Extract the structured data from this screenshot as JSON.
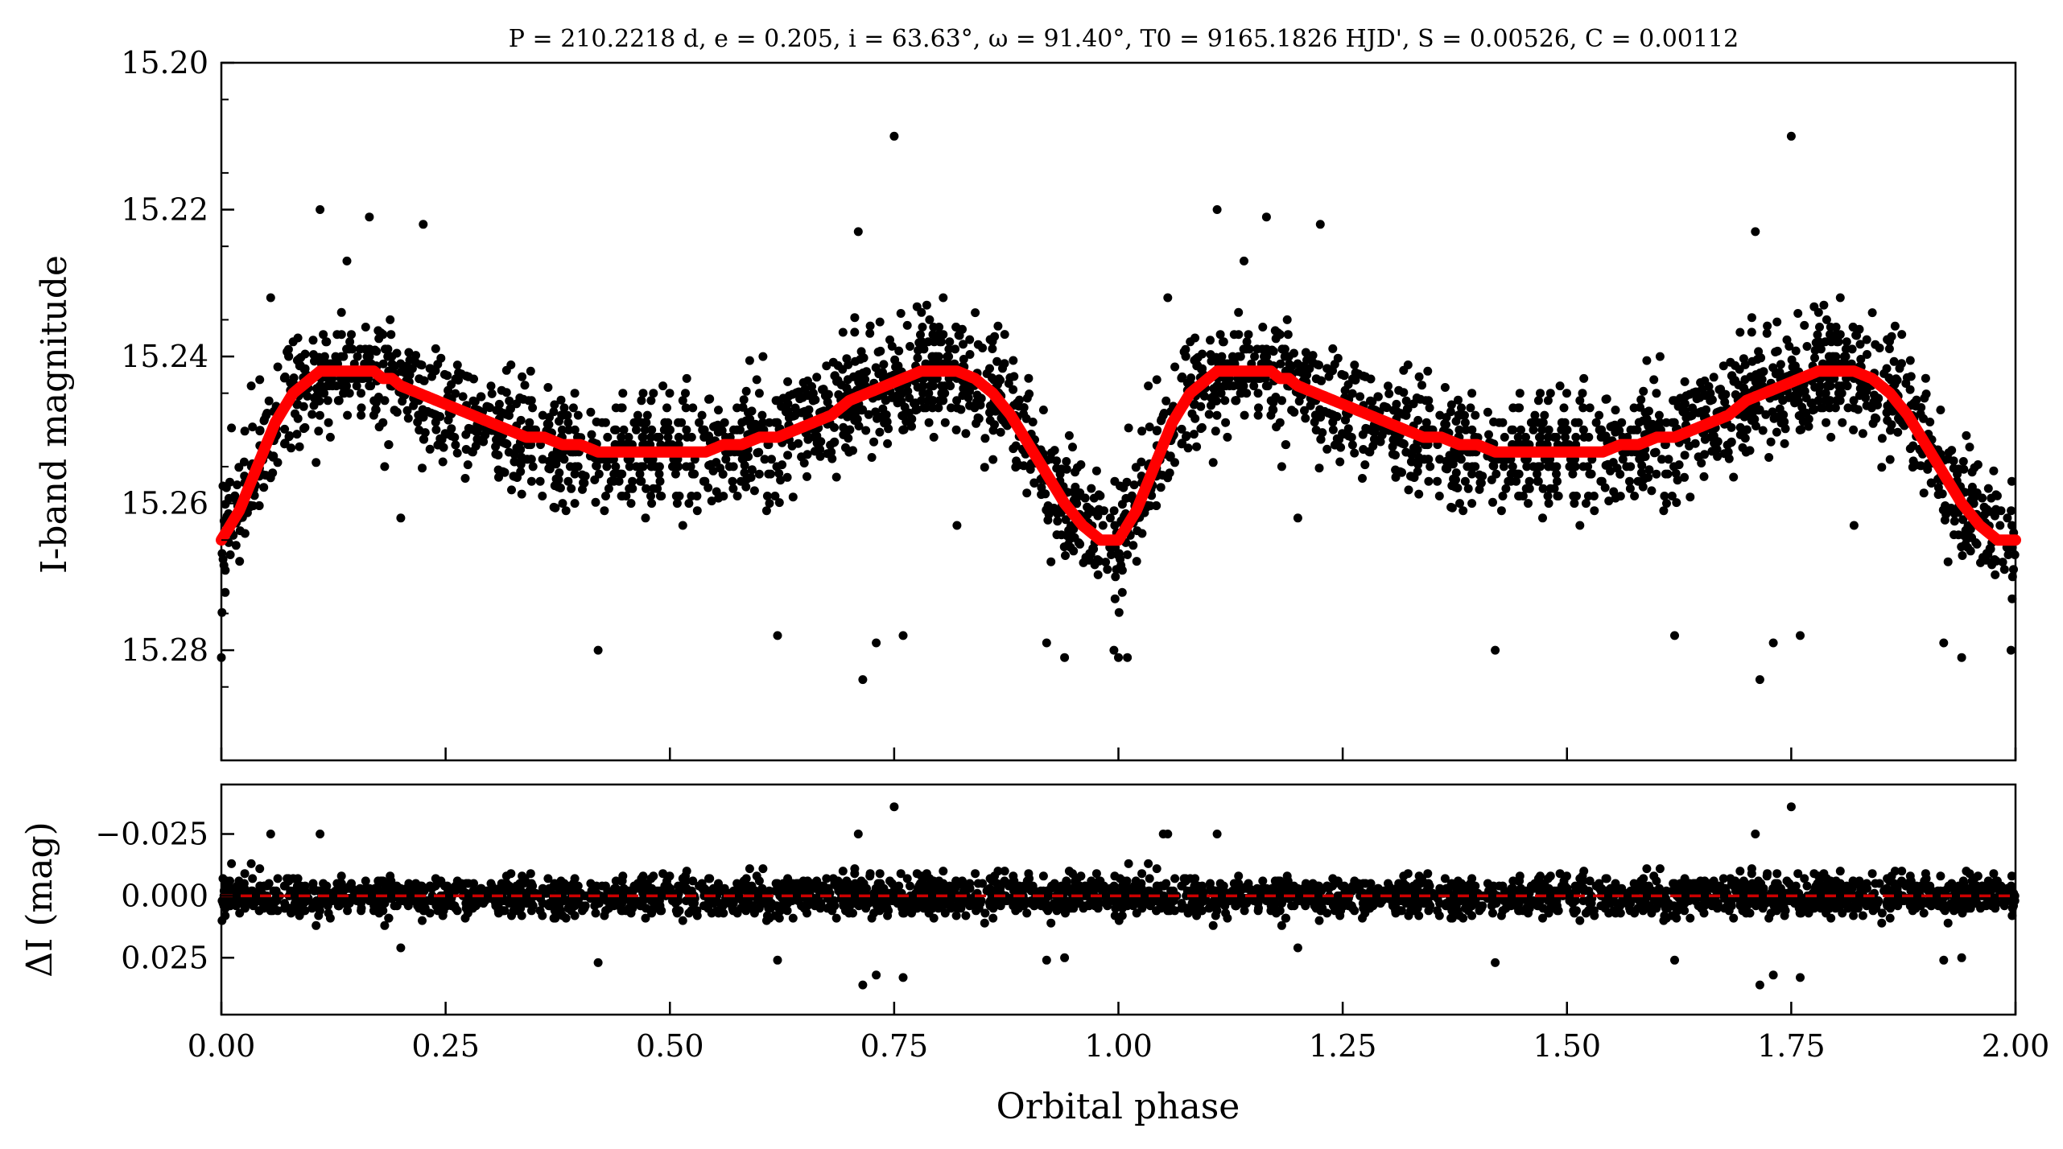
{
  "chart_data": [
    {
      "type": "scatter",
      "title": "P = 210.2218 d, e = 0.205, i = 63.63°, ω = 91.40°, T0 = 9165.1826 HJD', S = 0.00526, C = 0.00112",
      "xlabel": "Orbital phase",
      "ylabel": "I-band magnitude",
      "xlim": [
        0.0,
        2.0
      ],
      "ylim": [
        15.295,
        15.2
      ],
      "y_inverted": true,
      "x_ticks": [
        "0.00",
        "0.25",
        "0.50",
        "0.75",
        "1.00",
        "1.25",
        "1.50",
        "1.75",
        "2.00"
      ],
      "y_ticks": [
        "15.20",
        "15.22",
        "15.24",
        "15.26",
        "15.28"
      ],
      "series": [
        {
          "kind": "points",
          "color": "#000000",
          "description": "several thousand photometric points scattered about the model curve; sampled representation below",
          "x": [
            0.0,
            0.01,
            0.02,
            0.03,
            0.04,
            0.05,
            0.06,
            0.07,
            0.08,
            0.09,
            0.1,
            0.11,
            0.12,
            0.13,
            0.14,
            0.15,
            0.16,
            0.17,
            0.18,
            0.19,
            0.2,
            0.22,
            0.24,
            0.26,
            0.28,
            0.3,
            0.32,
            0.34,
            0.36,
            0.38,
            0.4,
            0.42,
            0.44,
            0.46,
            0.48,
            0.5,
            0.52,
            0.54,
            0.56,
            0.58,
            0.6,
            0.62,
            0.64,
            0.66,
            0.68,
            0.7,
            0.72,
            0.74,
            0.76,
            0.78,
            0.8,
            0.82,
            0.84,
            0.86,
            0.88,
            0.9,
            0.92,
            0.94,
            0.96,
            0.97,
            0.98,
            0.99
          ],
          "y": [
            15.265,
            15.263,
            15.261,
            15.258,
            15.255,
            15.252,
            15.249,
            15.247,
            15.245,
            15.244,
            15.243,
            15.242,
            15.242,
            15.242,
            15.242,
            15.242,
            15.242,
            15.242,
            15.243,
            15.243,
            15.244,
            15.245,
            15.246,
            15.247,
            15.248,
            15.249,
            15.25,
            15.251,
            15.251,
            15.252,
            15.252,
            15.253,
            15.253,
            15.253,
            15.253,
            15.253,
            15.253,
            15.253,
            15.252,
            15.252,
            15.251,
            15.251,
            15.25,
            15.249,
            15.248,
            15.246,
            15.245,
            15.244,
            15.243,
            15.242,
            15.242,
            15.242,
            15.243,
            15.245,
            15.248,
            15.252,
            15.256,
            15.26,
            15.263,
            15.264,
            15.265,
            15.265
          ],
          "scatter_mag": 0.007,
          "outliers": [
            {
              "x": 0.0,
              "y": 15.281
            },
            {
              "x": 0.055,
              "y": 15.232
            },
            {
              "x": 0.11,
              "y": 15.22
            },
            {
              "x": 0.14,
              "y": 15.227
            },
            {
              "x": 0.165,
              "y": 15.221
            },
            {
              "x": 0.225,
              "y": 15.222
            },
            {
              "x": 0.2,
              "y": 15.262
            },
            {
              "x": 0.42,
              "y": 15.28
            },
            {
              "x": 0.62,
              "y": 15.278
            },
            {
              "x": 0.71,
              "y": 15.223
            },
            {
              "x": 0.715,
              "y": 15.284
            },
            {
              "x": 0.73,
              "y": 15.279
            },
            {
              "x": 0.75,
              "y": 15.21
            },
            {
              "x": 0.76,
              "y": 15.278
            },
            {
              "x": 0.82,
              "y": 15.263
            },
            {
              "x": 0.92,
              "y": 15.279
            },
            {
              "x": 0.94,
              "y": 15.281
            },
            {
              "x": 0.995,
              "y": 15.28
            },
            {
              "x": 1.01,
              "y": 15.281
            }
          ]
        },
        {
          "kind": "line",
          "color": "#ff0000",
          "description": "model light curve",
          "x": [
            0.0,
            0.01,
            0.02,
            0.03,
            0.04,
            0.05,
            0.06,
            0.07,
            0.08,
            0.09,
            0.1,
            0.11,
            0.12,
            0.13,
            0.14,
            0.15,
            0.16,
            0.17,
            0.18,
            0.19,
            0.2,
            0.22,
            0.24,
            0.26,
            0.28,
            0.3,
            0.32,
            0.34,
            0.36,
            0.38,
            0.4,
            0.42,
            0.44,
            0.46,
            0.48,
            0.5,
            0.52,
            0.54,
            0.56,
            0.58,
            0.6,
            0.62,
            0.64,
            0.66,
            0.68,
            0.7,
            0.72,
            0.74,
            0.76,
            0.78,
            0.8,
            0.82,
            0.84,
            0.86,
            0.88,
            0.9,
            0.92,
            0.94,
            0.96,
            0.97,
            0.98,
            0.99,
            1.0
          ],
          "y": [
            15.265,
            15.263,
            15.261,
            15.258,
            15.255,
            15.252,
            15.249,
            15.247,
            15.245,
            15.244,
            15.243,
            15.242,
            15.242,
            15.242,
            15.242,
            15.242,
            15.242,
            15.242,
            15.243,
            15.243,
            15.244,
            15.245,
            15.246,
            15.247,
            15.248,
            15.249,
            15.25,
            15.251,
            15.251,
            15.252,
            15.252,
            15.253,
            15.253,
            15.253,
            15.253,
            15.253,
            15.253,
            15.253,
            15.252,
            15.252,
            15.251,
            15.251,
            15.25,
            15.249,
            15.248,
            15.246,
            15.245,
            15.244,
            15.243,
            15.242,
            15.242,
            15.242,
            15.243,
            15.245,
            15.248,
            15.252,
            15.256,
            15.26,
            15.263,
            15.264,
            15.265,
            15.265,
            15.265
          ],
          "repeat_period": 1.0
        }
      ]
    },
    {
      "type": "scatter",
      "xlabel": "Orbital phase",
      "ylabel": "ΔI (mag)",
      "xlim": [
        0.0,
        2.0
      ],
      "ylim": [
        0.048,
        -0.045
      ],
      "y_inverted": true,
      "x_ticks": [
        "0.00",
        "0.25",
        "0.50",
        "0.75",
        "1.00",
        "1.25",
        "1.50",
        "1.75",
        "2.00"
      ],
      "y_ticks": [
        "−0.025",
        "0.000",
        "0.025"
      ],
      "y_tick_values": [
        -0.025,
        0.0,
        0.025
      ],
      "series": [
        {
          "kind": "points",
          "color": "#000000",
          "description": "residuals (observed minus model), scatter of about 0.007 mag about zero; sampled representation",
          "scatter_mag": 0.007,
          "outliers": [
            {
              "x": 0.055,
              "y": -0.025
            },
            {
              "x": 0.11,
              "y": -0.025
            },
            {
              "x": 0.2,
              "y": 0.021
            },
            {
              "x": 0.42,
              "y": 0.027
            },
            {
              "x": 0.62,
              "y": 0.026
            },
            {
              "x": 0.71,
              "y": -0.025
            },
            {
              "x": 0.715,
              "y": 0.036
            },
            {
              "x": 0.73,
              "y": 0.032
            },
            {
              "x": 0.75,
              "y": -0.036
            },
            {
              "x": 0.76,
              "y": 0.033
            },
            {
              "x": 0.92,
              "y": 0.026
            },
            {
              "x": 0.94,
              "y": 0.025
            },
            {
              "x": 1.05,
              "y": -0.025
            }
          ]
        },
        {
          "kind": "line",
          "style": "dashed",
          "color": "#cc0000",
          "y": 0.0
        }
      ]
    }
  ]
}
